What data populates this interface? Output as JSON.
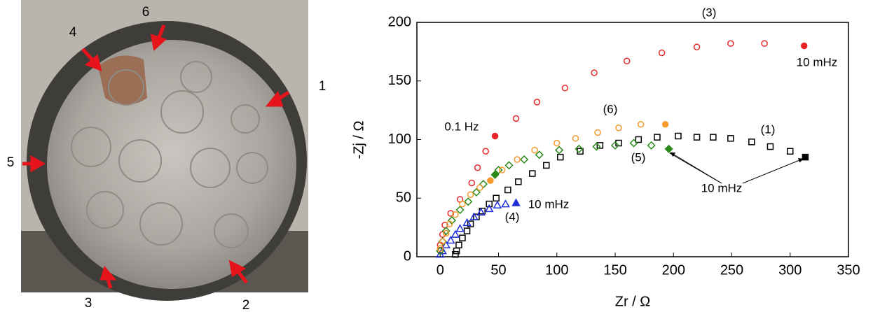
{
  "photo": {
    "labels": [
      "1",
      "2",
      "3",
      "4",
      "5",
      "6"
    ]
  },
  "chart_data": {
    "type": "scatter",
    "x_label": "Zr / Ω",
    "y_label": "-Zj / Ω",
    "xlim": [
      -20,
      350
    ],
    "xticks": [
      0,
      50,
      100,
      150,
      200,
      250,
      300,
      350
    ],
    "ylim": [
      0,
      200
    ],
    "yticks": [
      0,
      50,
      100,
      150,
      200
    ],
    "grid": false,
    "annotations": [
      "10 mHz",
      "0.1 Hz",
      "10 mHz",
      "10 mHz"
    ],
    "series": [
      {
        "name": "(1)",
        "color": "#000000",
        "marker": "square",
        "x": [
          13,
          14,
          16,
          19,
          23,
          26,
          31,
          36,
          42,
          48,
          58,
          67,
          79,
          91,
          103,
          120,
          137,
          153,
          170,
          186,
          204,
          220,
          234,
          249,
          267,
          283,
          300,
          313
        ],
        "values": [
          2,
          5,
          10,
          16,
          22,
          28,
          34,
          39,
          45,
          50,
          57,
          64,
          71,
          78,
          85,
          90,
          95,
          97,
          100,
          102,
          103,
          102,
          102,
          101,
          98,
          94,
          90,
          85
        ],
        "filled": [
          false,
          false,
          false,
          false,
          false,
          false,
          false,
          false,
          false,
          false,
          false,
          false,
          false,
          false,
          false,
          false,
          false,
          false,
          false,
          false,
          false,
          false,
          false,
          false,
          false,
          false,
          false,
          true
        ]
      },
      {
        "name": "(3)",
        "color": "#e8262a",
        "marker": "circle",
        "x": [
          0,
          0,
          2,
          4,
          9,
          17,
          27,
          32,
          39,
          47,
          65,
          83,
          107,
          132,
          160,
          190,
          220,
          249,
          278,
          312
        ],
        "values": [
          5,
          10,
          19,
          27,
          37,
          49,
          63,
          76,
          90,
          103,
          118,
          132,
          144,
          157,
          167,
          174,
          179,
          182,
          182,
          180
        ],
        "filled": [
          false,
          false,
          false,
          false,
          false,
          false,
          false,
          false,
          false,
          true,
          false,
          false,
          false,
          false,
          false,
          false,
          false,
          false,
          false,
          true
        ]
      },
      {
        "name": "(4)",
        "color": "#1f2ed8",
        "marker": "triangle",
        "x": [
          0,
          2,
          5,
          9,
          13,
          17,
          23,
          29,
          35,
          42,
          49,
          56,
          65
        ],
        "values": [
          2,
          5,
          10,
          14,
          19,
          24,
          29,
          34,
          38,
          41,
          44,
          45,
          46
        ],
        "filled": [
          false,
          false,
          false,
          false,
          false,
          false,
          false,
          false,
          false,
          false,
          false,
          false,
          true
        ]
      },
      {
        "name": "(5)",
        "color": "#2a8a1a",
        "marker": "diamond",
        "x": [
          0,
          2,
          5,
          10,
          17,
          24,
          31,
          37,
          47,
          50,
          59,
          72,
          85,
          102,
          119,
          134,
          150,
          166,
          181,
          196
        ],
        "values": [
          5,
          13,
          22,
          31,
          40,
          47,
          55,
          62,
          70,
          74,
          78,
          83,
          87,
          91,
          92,
          94,
          95,
          97,
          95,
          92
        ],
        "filled": [
          false,
          false,
          false,
          false,
          false,
          false,
          false,
          false,
          true,
          false,
          false,
          false,
          false,
          false,
          false,
          false,
          false,
          false,
          false,
          true
        ]
      },
      {
        "name": "(6)",
        "color": "#f39a2b",
        "marker": "circle",
        "x": [
          0,
          2,
          5,
          8,
          13,
          19,
          26,
          34,
          43,
          53,
          66,
          81,
          100,
          116,
          135,
          153,
          172,
          193
        ],
        "values": [
          7,
          13,
          20,
          28,
          36,
          45,
          53,
          59,
          65,
          74,
          83,
          91,
          97,
          101,
          106,
          110,
          113,
          113
        ],
        "filled": [
          false,
          false,
          false,
          false,
          false,
          false,
          false,
          false,
          true,
          false,
          false,
          false,
          false,
          false,
          false,
          false,
          false,
          true
        ]
      }
    ]
  }
}
